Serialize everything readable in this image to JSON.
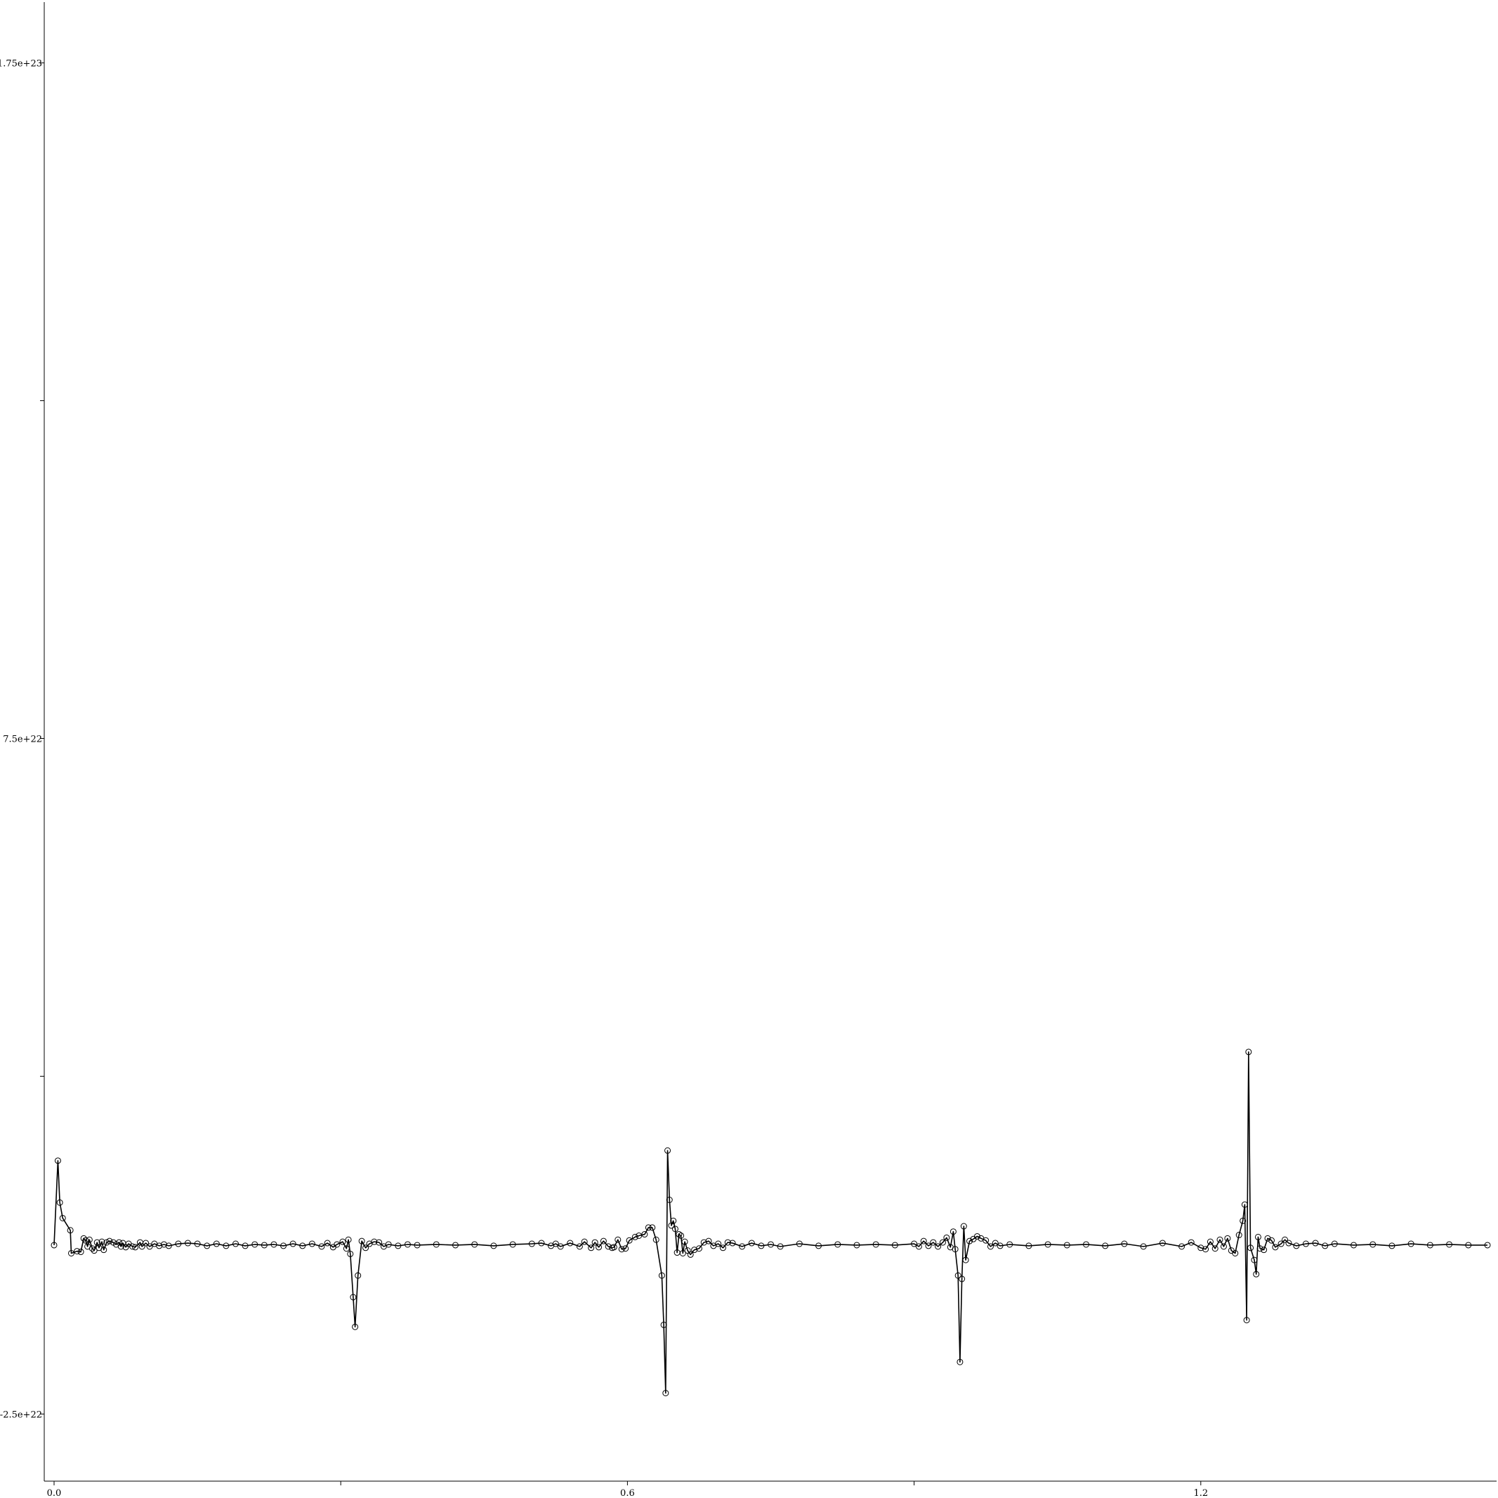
{
  "chart_data": {
    "type": "line",
    "title": "",
    "xlabel": "",
    "ylabel": "",
    "xlim": [
      0.0,
      1.5
    ],
    "ylim": [
      -3.4e+22,
      1.84e+23
    ],
    "grid": false,
    "x_ticks": [
      {
        "value": 0.0,
        "label": "0.0"
      },
      {
        "value": 0.3,
        "label": ""
      },
      {
        "value": 0.6,
        "label": "0.6"
      },
      {
        "value": 0.9,
        "label": ""
      },
      {
        "value": 1.2,
        "label": "1.2"
      }
    ],
    "y_ticks": [
      {
        "value": -2.5e+22,
        "label": "-2.5e+22"
      },
      {
        "value": 2.5e+22,
        "label": ""
      },
      {
        "value": 7.5e+22,
        "label": "7.5e+22"
      },
      {
        "value": 1.25e+23,
        "label": ""
      },
      {
        "value": 1.75e+23,
        "label": "1.75e+23"
      }
    ],
    "series": [
      {
        "marker": "circle",
        "color": "#000000",
        "points": [
          [
            0.0,
            0.0
          ],
          [
            0.004,
            1.25e+22
          ],
          [
            0.006,
            6.3e+21
          ],
          [
            0.009,
            4e+21
          ],
          [
            0.017,
            2.2e+21
          ],
          [
            0.018,
            -1.2e+21
          ],
          [
            0.024,
            -9e+20
          ],
          [
            0.028,
            -1e+21
          ],
          [
            0.031,
            1e+21
          ],
          [
            0.033,
            7e+20
          ],
          [
            0.035,
            -2e+20
          ],
          [
            0.037,
            8e+20
          ],
          [
            0.04,
            -5e+20
          ],
          [
            0.042,
            -8e+20
          ],
          [
            0.045,
            4e+20
          ],
          [
            0.047,
            -4e+20
          ],
          [
            0.05,
            5e+20
          ],
          [
            0.052,
            -7e+20
          ],
          [
            0.055,
            4e+20
          ],
          [
            0.058,
            6e+20
          ],
          [
            0.062,
            4e+20
          ],
          [
            0.065,
            1e+20
          ],
          [
            0.068,
            4e+20
          ],
          [
            0.07,
            -2e+20
          ],
          [
            0.072,
            3e+20
          ],
          [
            0.075,
            -3e+20
          ],
          [
            0.078,
            2e+20
          ],
          [
            0.082,
            -2e+20
          ],
          [
            0.085,
            -3e+20
          ],
          [
            0.09,
            4e+20
          ],
          [
            0.092,
            -2e+20
          ],
          [
            0.096,
            3e+20
          ],
          [
            0.1,
            -2e+20
          ],
          [
            0.105,
            2e+20
          ],
          [
            0.11,
            -1e+20
          ],
          [
            0.115,
            1e+20
          ],
          [
            0.12,
            -1e+20
          ],
          [
            0.13,
            2e+20
          ],
          [
            0.14,
            3e+20
          ],
          [
            0.15,
            2e+20
          ],
          [
            0.16,
            -1e+20
          ],
          [
            0.17,
            2e+20
          ],
          [
            0.18,
            -1e+20
          ],
          [
            0.19,
            2e+20
          ],
          [
            0.2,
            -1e+20
          ],
          [
            0.21,
            1e+20
          ],
          [
            0.22,
            0.0
          ],
          [
            0.23,
            1e+20
          ],
          [
            0.24,
            -1e+20
          ],
          [
            0.25,
            2e+20
          ],
          [
            0.26,
            -1e+20
          ],
          [
            0.27,
            2e+20
          ],
          [
            0.28,
            -2e+20
          ],
          [
            0.286,
            3e+20
          ],
          [
            0.292,
            -3e+20
          ],
          [
            0.296,
            1e+20
          ],
          [
            0.302,
            5e+20
          ],
          [
            0.306,
            -5e+20
          ],
          [
            0.308,
            8e+20
          ],
          [
            0.31,
            -1.3e+21
          ],
          [
            0.313,
            -7.7e+21
          ],
          [
            0.315,
            -1.21e+22
          ],
          [
            0.318,
            -4.5e+21
          ],
          [
            0.322,
            6e+20
          ],
          [
            0.326,
            -4e+20
          ],
          [
            0.33,
            2e+20
          ],
          [
            0.335,
            5e+20
          ],
          [
            0.34,
            4e+20
          ],
          [
            0.345,
            -2e+20
          ],
          [
            0.35,
            1e+20
          ],
          [
            0.36,
            -1e+20
          ],
          [
            0.37,
            1e+20
          ],
          [
            0.38,
            0.0
          ],
          [
            0.4,
            1e+20
          ],
          [
            0.42,
            0.0
          ],
          [
            0.44,
            1e+20
          ],
          [
            0.46,
            -1e+20
          ],
          [
            0.48,
            1e+20
          ],
          [
            0.5,
            2e+20
          ],
          [
            0.51,
            3e+20
          ],
          [
            0.52,
            -1e+20
          ],
          [
            0.525,
            2e+20
          ],
          [
            0.53,
            -2e+20
          ],
          [
            0.54,
            3e+20
          ],
          [
            0.55,
            -2e+20
          ],
          [
            0.555,
            5e+20
          ],
          [
            0.562,
            -4e+20
          ],
          [
            0.566,
            4e+20
          ],
          [
            0.57,
            -3e+20
          ],
          [
            0.575,
            6e+20
          ],
          [
            0.58,
            -2e+20
          ],
          [
            0.584,
            -4e+20
          ],
          [
            0.586,
            -3e+20
          ],
          [
            0.59,
            8e+20
          ],
          [
            0.594,
            -6e+20
          ],
          [
            0.598,
            -5e+20
          ],
          [
            0.602,
            7e+20
          ],
          [
            0.608,
            1.2e+21
          ],
          [
            0.612,
            1.4e+21
          ],
          [
            0.618,
            1.6e+21
          ],
          [
            0.622,
            2.6e+21
          ],
          [
            0.626,
            2.6e+21
          ],
          [
            0.63,
            8e+20
          ],
          [
            0.636,
            -4.5e+21
          ],
          [
            0.638,
            -1.18e+22
          ],
          [
            0.64,
            -2.19e+22
          ],
          [
            0.642,
            1.4e+22
          ],
          [
            0.644,
            6.7e+21
          ],
          [
            0.646,
            2.9e+21
          ],
          [
            0.648,
            3.6e+21
          ],
          [
            0.65,
            2.4e+21
          ],
          [
            0.652,
            -1.1e+21
          ],
          [
            0.654,
            1.6e+21
          ],
          [
            0.656,
            1.4e+21
          ],
          [
            0.658,
            -1.2e+21
          ],
          [
            0.66,
            5e+20
          ],
          [
            0.663,
            -8e+20
          ],
          [
            0.666,
            -1.4e+21
          ],
          [
            0.67,
            -7e+20
          ],
          [
            0.675,
            -5e+20
          ],
          [
            0.68,
            4e+20
          ],
          [
            0.685,
            6e+20
          ],
          [
            0.69,
            -1e+20
          ],
          [
            0.695,
            2e+20
          ],
          [
            0.7,
            -4e+20
          ],
          [
            0.705,
            4e+20
          ],
          [
            0.71,
            3e+20
          ],
          [
            0.72,
            -2e+20
          ],
          [
            0.73,
            3e+20
          ],
          [
            0.74,
            -1e+20
          ],
          [
            0.75,
            1e+20
          ],
          [
            0.76,
            -2e+20
          ],
          [
            0.78,
            2e+20
          ],
          [
            0.8,
            -1e+20
          ],
          [
            0.82,
            1e+20
          ],
          [
            0.84,
            0.0
          ],
          [
            0.86,
            1e+20
          ],
          [
            0.88,
            0.0
          ],
          [
            0.9,
            2e+20
          ],
          [
            0.905,
            -2e+20
          ],
          [
            0.91,
            6e+20
          ],
          [
            0.915,
            -1e+20
          ],
          [
            0.92,
            4e+20
          ],
          [
            0.925,
            -2e+20
          ],
          [
            0.93,
            4e+20
          ],
          [
            0.934,
            1.1e+21
          ],
          [
            0.938,
            -3e+20
          ],
          [
            0.941,
            2e+21
          ],
          [
            0.943,
            -6e+20
          ],
          [
            0.946,
            -4.5e+21
          ],
          [
            0.948,
            -1.73e+22
          ],
          [
            0.95,
            -5e+21
          ],
          [
            0.952,
            2.8e+21
          ],
          [
            0.954,
            -2.2e+21
          ],
          [
            0.958,
            6e+20
          ],
          [
            0.962,
            9e+20
          ],
          [
            0.966,
            1.3e+21
          ],
          [
            0.97,
            1e+21
          ],
          [
            0.975,
            7e+20
          ],
          [
            0.98,
            -2e+20
          ],
          [
            0.985,
            3e+20
          ],
          [
            0.99,
            -1e+20
          ],
          [
            1.0,
            1e+20
          ],
          [
            1.02,
            -1e+20
          ],
          [
            1.04,
            1e+20
          ],
          [
            1.06,
            0.0
          ],
          [
            1.08,
            1e+20
          ],
          [
            1.1,
            -1e+20
          ],
          [
            1.12,
            2e+20
          ],
          [
            1.14,
            -2e+20
          ],
          [
            1.16,
            3e+20
          ],
          [
            1.18,
            -2e+20
          ],
          [
            1.19,
            4e+20
          ],
          [
            1.2,
            -4e+20
          ],
          [
            1.205,
            -6e+20
          ],
          [
            1.21,
            5e+20
          ],
          [
            1.215,
            -5e+20
          ],
          [
            1.22,
            8e+20
          ],
          [
            1.224,
            -2e+20
          ],
          [
            1.228,
            1e+21
          ],
          [
            1.232,
            -8e+20
          ],
          [
            1.236,
            -1.2e+21
          ],
          [
            1.24,
            1.5e+21
          ],
          [
            1.244,
            3.6e+21
          ],
          [
            1.246,
            6e+21
          ],
          [
            1.248,
            -1.11e+22
          ],
          [
            1.25,
            2.86e+22
          ],
          [
            1.252,
            -4e+20
          ],
          [
            1.256,
            -2.2e+21
          ],
          [
            1.258,
            -4.3e+21
          ],
          [
            1.26,
            1.2e+21
          ],
          [
            1.262,
            -5e+20
          ],
          [
            1.266,
            -7e+20
          ],
          [
            1.27,
            1e+21
          ],
          [
            1.274,
            7e+20
          ],
          [
            1.278,
            -3e+20
          ],
          [
            1.284,
            2e+20
          ],
          [
            1.288,
            8e+20
          ],
          [
            1.292,
            3e+20
          ],
          [
            1.3,
            -1e+20
          ],
          [
            1.31,
            2e+20
          ],
          [
            1.32,
            3e+20
          ],
          [
            1.33,
            -1e+20
          ],
          [
            1.34,
            2e+20
          ],
          [
            1.36,
            0.0
          ],
          [
            1.38,
            1e+20
          ],
          [
            1.4,
            -1e+20
          ],
          [
            1.42,
            2e+20
          ],
          [
            1.44,
            0.0
          ],
          [
            1.46,
            1e+20
          ],
          [
            1.48,
            0.0
          ],
          [
            1.5,
            0.0
          ]
        ]
      }
    ]
  }
}
